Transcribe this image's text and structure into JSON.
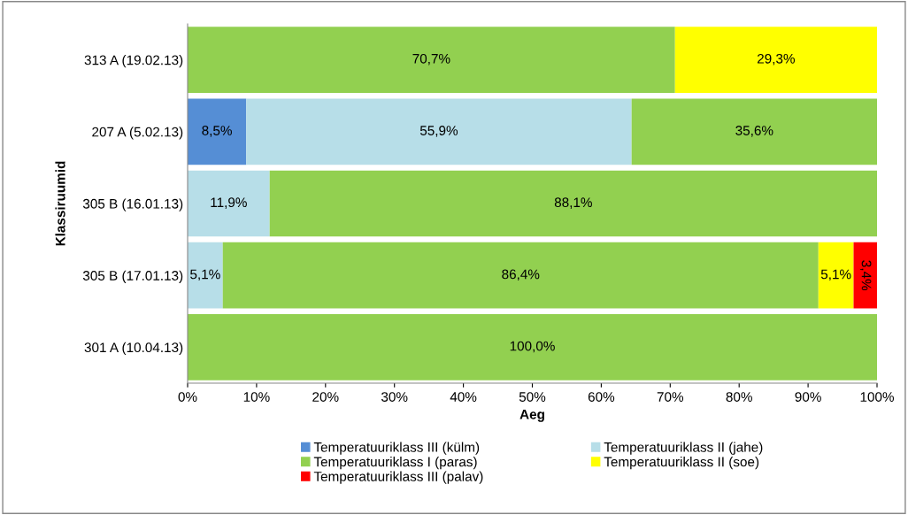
{
  "chart_data": {
    "type": "bar",
    "orientation": "horizontal",
    "stacked": true,
    "xlabel": "Aeg",
    "ylabel": "Klassiruumid",
    "categories": [
      "313 A (19.02.13)",
      "207 A (5.02.13)",
      "305 B (16.01.13)",
      "305 B (17.01.13)",
      "301 A (10.04.13)"
    ],
    "xlim": [
      0,
      100
    ],
    "xticks": [
      {
        "value": 0,
        "label": "0%"
      },
      {
        "value": 10,
        "label": "10%"
      },
      {
        "value": 20,
        "label": "20%"
      },
      {
        "value": 30,
        "label": "30%"
      },
      {
        "value": 40,
        "label": "40%"
      },
      {
        "value": 50,
        "label": "50%"
      },
      {
        "value": 60,
        "label": "60%"
      },
      {
        "value": 70,
        "label": "70%"
      },
      {
        "value": 80,
        "label": "80%"
      },
      {
        "value": 90,
        "label": "90%"
      },
      {
        "value": 100,
        "label": "100%"
      }
    ],
    "grid": false,
    "legend": "bottom",
    "series": [
      {
        "name": "Temperatuuriklass III (külm)",
        "color": "#558ed5",
        "values": [
          null,
          8.5,
          null,
          null,
          null
        ],
        "value_labels": [
          null,
          "8,5%",
          null,
          null,
          null
        ]
      },
      {
        "name": "Temperatuuriklass II (jahe)",
        "color": "#b7dee8",
        "values": [
          null,
          55.9,
          11.9,
          5.1,
          null
        ],
        "value_labels": [
          null,
          "55,9%",
          "11,9%",
          "5,1%",
          null
        ]
      },
      {
        "name": "Temperatuuriklass I (paras)",
        "color": "#92d050",
        "values": [
          70.7,
          35.6,
          88.1,
          86.4,
          100.0
        ],
        "value_labels": [
          "70,7%",
          "35,6%",
          "88,1%",
          "86,4%",
          "100,0%"
        ]
      },
      {
        "name": "Temperatuuriklass II (soe)",
        "color": "#ffff00",
        "values": [
          29.3,
          null,
          null,
          5.1,
          null
        ],
        "value_labels": [
          "29,3%",
          null,
          null,
          "5,1%",
          null
        ]
      },
      {
        "name": "Temperatuuriklass III (palav)",
        "color": "#ff0000",
        "values": [
          null,
          null,
          null,
          3.4,
          null
        ],
        "value_labels": [
          null,
          null,
          null,
          "3,4%",
          null
        ]
      }
    ]
  }
}
